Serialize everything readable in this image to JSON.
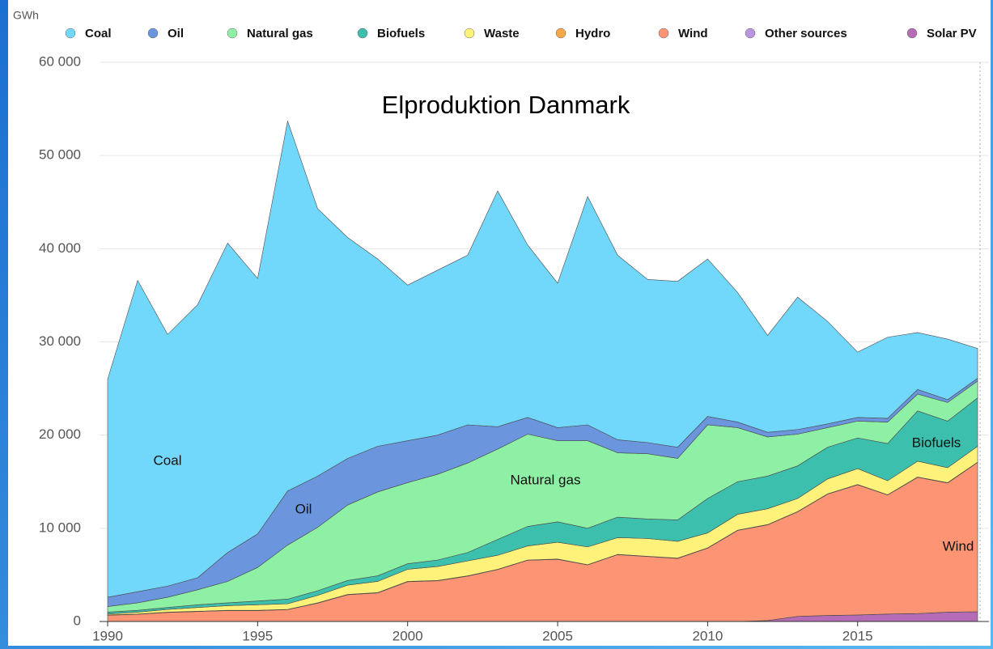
{
  "chart_data": {
    "type": "stacked_area",
    "title": "Elproduktion Danmark",
    "y_unit": "GWh",
    "x": [
      1990,
      1991,
      1992,
      1993,
      1994,
      1995,
      1996,
      1997,
      1998,
      1999,
      2000,
      2001,
      2002,
      2003,
      2004,
      2005,
      2006,
      2007,
      2008,
      2009,
      2010,
      2011,
      2012,
      2013,
      2014,
      2015,
      2016,
      2017,
      2018,
      2019
    ],
    "xlim": [
      1990,
      2019
    ],
    "xticks": [
      1990,
      1995,
      2000,
      2005,
      2010,
      2015
    ],
    "ylim": [
      0,
      60000
    ],
    "yticks": [
      0,
      {
        "value": 10000,
        "label": "10 000"
      },
      {
        "value": 20000,
        "label": "20 000"
      },
      {
        "value": 30000,
        "label": "30 000"
      },
      {
        "value": 40000,
        "label": "40 000"
      },
      {
        "value": 50000,
        "label": "50 000"
      },
      {
        "value": 60000,
        "label": "60 000"
      }
    ],
    "grid": true,
    "legend": "top",
    "series": [
      {
        "name": "Coal",
        "color": "#72d8fb",
        "values": [
          23400,
          33400,
          27000,
          29300,
          33200,
          27400,
          39700,
          28700,
          23700,
          20100,
          16700,
          17700,
          18200,
          25300,
          18500,
          15500,
          24500,
          19800,
          17500,
          17800,
          16900,
          13900,
          10400,
          14200,
          11000,
          7000,
          8700,
          6100,
          6500,
          3200
        ]
      },
      {
        "name": "Oil",
        "color": "#6b95dd",
        "values": [
          1000,
          1200,
          1200,
          1300,
          3100,
          3600,
          5800,
          5500,
          5000,
          4900,
          4500,
          4200,
          4100,
          2400,
          1800,
          1400,
          1700,
          1400,
          1200,
          1200,
          900,
          600,
          500,
          500,
          400,
          400,
          400,
          500,
          300,
          300
        ]
      },
      {
        "name": "Natural gas",
        "color": "#8ef0a5",
        "values": [
          600,
          800,
          1100,
          1600,
          2300,
          3600,
          5800,
          6800,
          8100,
          9000,
          8700,
          9200,
          9600,
          9700,
          9900,
          8700,
          9400,
          6900,
          7000,
          6600,
          7900,
          5800,
          4200,
          3400,
          2100,
          1800,
          2300,
          1800,
          2000,
          1800
        ]
      },
      {
        "name": "Biofuels",
        "color": "#3cbfad",
        "values": [
          200,
          200,
          200,
          300,
          300,
          400,
          500,
          500,
          500,
          600,
          600,
          700,
          900,
          1700,
          2100,
          2200,
          2000,
          2200,
          2100,
          2300,
          3700,
          3500,
          3500,
          3500,
          3400,
          3300,
          4000,
          5400,
          5000,
          5200
        ]
      },
      {
        "name": "Waste",
        "color": "#fff27a",
        "values": [
          100,
          200,
          300,
          400,
          500,
          600,
          600,
          800,
          1000,
          1200,
          1300,
          1500,
          1600,
          1500,
          1500,
          1800,
          1900,
          1800,
          1900,
          1800,
          1600,
          1700,
          1700,
          1400,
          1600,
          1700,
          1500,
          1700,
          1600,
          1700
        ]
      },
      {
        "name": "Hydro",
        "color": "#f5a84a",
        "values": [
          30,
          30,
          30,
          30,
          30,
          30,
          30,
          30,
          30,
          30,
          30,
          30,
          30,
          30,
          30,
          30,
          30,
          30,
          30,
          30,
          30,
          30,
          30,
          30,
          30,
          30,
          30,
          30,
          30,
          30
        ]
      },
      {
        "name": "Wind",
        "color": "#fd9574",
        "values": [
          670,
          770,
          970,
          1070,
          1170,
          1170,
          1270,
          1970,
          2870,
          3070,
          4270,
          4370,
          4870,
          5570,
          6570,
          6670,
          6070,
          7170,
          6970,
          6770,
          7870,
          9770,
          10270,
          11220,
          13020,
          13970,
          12770,
          14620,
          13870,
          16020
        ]
      },
      {
        "name": "Other sources",
        "color": "#b996e0",
        "values": [
          0,
          0,
          0,
          0,
          0,
          0,
          0,
          0,
          0,
          0,
          0,
          0,
          0,
          0,
          0,
          0,
          0,
          0,
          0,
          0,
          0,
          0,
          0,
          0,
          0,
          0,
          0,
          0,
          0,
          0
        ]
      },
      {
        "name": "Solar PV",
        "color": "#b56bb5",
        "values": [
          0,
          0,
          0,
          0,
          0,
          0,
          0,
          0,
          0,
          0,
          0,
          0,
          0,
          0,
          0,
          0,
          0,
          0,
          0,
          0,
          0,
          0,
          100,
          550,
          650,
          700,
          800,
          850,
          1000,
          1050
        ]
      }
    ],
    "annotations": [
      "Coal",
      "Oil",
      "Natural gas",
      "Biofuels",
      "Wind"
    ]
  }
}
